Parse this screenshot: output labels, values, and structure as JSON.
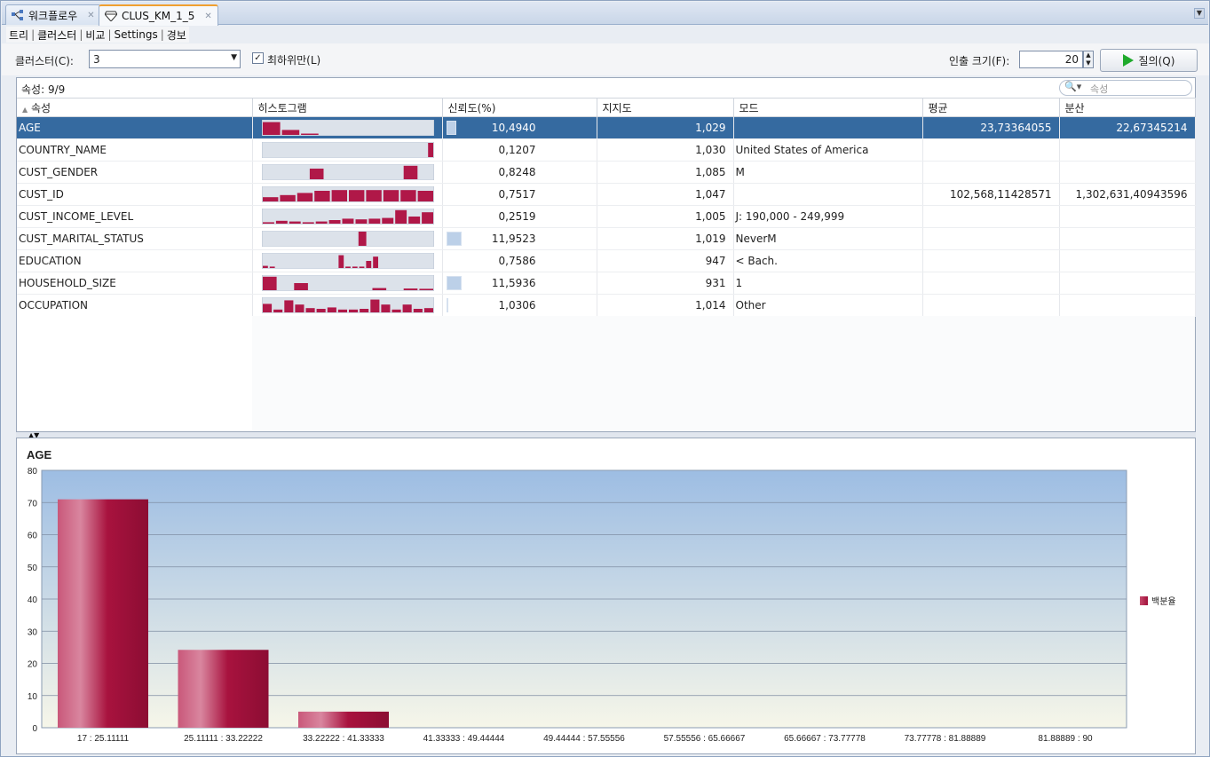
{
  "editor_tabs": [
    {
      "label": "워크플로우",
      "icon": "workflow-icon",
      "active": false
    },
    {
      "label": "CLUS_KM_1_5",
      "icon": "diamond-icon",
      "active": true
    }
  ],
  "sub_tabs": [
    {
      "label": "트리"
    },
    {
      "label": "클러스터",
      "selected": true
    },
    {
      "label": "비교"
    },
    {
      "label": "Settings"
    },
    {
      "label": "경보"
    }
  ],
  "toolbar": {
    "cluster_label": "클러스터(C):",
    "cluster_value": "3",
    "leaf_only_label": "최하위만(L)",
    "leaf_only_checked": true,
    "fetch_label": "인출 크기(F):",
    "fetch_value": "20",
    "query_label": "질의(Q)"
  },
  "table": {
    "attr_count": "속성: 9/9",
    "search_placeholder": "속성",
    "columns": [
      "속성",
      "히스토그램",
      "신뢰도(%)",
      "지지도",
      "모드",
      "평균",
      "분산"
    ],
    "rows": [
      {
        "name": "AGE",
        "hist": [
          0.9,
          0.35,
          0.07,
          0,
          0,
          0,
          0,
          0,
          0
        ],
        "confidence": "10,4940",
        "conf_frac": 0.09,
        "support": "1,029",
        "mode": "",
        "mean": "23,73364055",
        "variance": "22,67345214",
        "selected": true
      },
      {
        "name": "COUNTRY_NAME",
        "hist": [
          0,
          0,
          0,
          0,
          0,
          0,
          0,
          0,
          0,
          0,
          0,
          0,
          0,
          0,
          0,
          0,
          0,
          0,
          0,
          0,
          0,
          0,
          0,
          0,
          1
        ],
        "confidence": "0,1207",
        "conf_frac": 0,
        "support": "1,030",
        "mode": "United States of America",
        "mean": "",
        "variance": ""
      },
      {
        "name": "CUST_GENDER",
        "hist": [
          0,
          0,
          0,
          0.75,
          0,
          0,
          0,
          0,
          0,
          0.95,
          0
        ],
        "confidence": "0,8248",
        "conf_frac": 0,
        "support": "1,085",
        "mode": "M",
        "mean": "",
        "variance": ""
      },
      {
        "name": "CUST_ID",
        "hist": [
          0.3,
          0.45,
          0.6,
          0.75,
          0.8,
          0.8,
          0.8,
          0.8,
          0.8,
          0.75
        ],
        "confidence": "0,7517",
        "conf_frac": 0,
        "support": "1,047",
        "mode": "",
        "mean": "102,568,11428571",
        "variance": "1,302,631,40943596"
      },
      {
        "name": "CUST_INCOME_LEVEL",
        "hist": [
          0.1,
          0.2,
          0.15,
          0.1,
          0.15,
          0.25,
          0.35,
          0.3,
          0.35,
          0.4,
          0.95,
          0.5,
          0.8
        ],
        "confidence": "0,2519",
        "conf_frac": 0,
        "support": "1,005",
        "mode": "J: 190,000 - 249,999",
        "mean": "",
        "variance": ""
      },
      {
        "name": "CUST_MARITAL_STATUS",
        "hist": [
          0,
          0,
          0,
          0,
          0,
          0,
          0,
          0,
          0,
          0,
          1,
          0,
          0,
          0,
          0,
          0,
          0,
          0
        ],
        "confidence": "11,9523",
        "conf_frac": 0.14,
        "support": "1,019",
        "mode": "NeverM",
        "mean": "",
        "variance": ""
      },
      {
        "name": "EDUCATION",
        "hist": [
          0.15,
          0.1,
          0,
          0,
          0,
          0,
          0,
          0,
          0,
          0,
          0,
          0.9,
          0.1,
          0.1,
          0.1,
          0.5,
          0.8,
          0,
          0,
          0,
          0,
          0,
          0,
          0,
          0
        ],
        "confidence": "0,7586",
        "conf_frac": 0,
        "support": "947",
        "mode": "< Bach.",
        "mean": "",
        "variance": ""
      },
      {
        "name": "HOUSEHOLD_SIZE",
        "hist": [
          0.95,
          0,
          0.5,
          0,
          0,
          0,
          0,
          0.15,
          0,
          0.12,
          0.1
        ],
        "confidence": "11,5936",
        "conf_frac": 0.14,
        "support": "931",
        "mode": "1",
        "mean": "",
        "variance": ""
      },
      {
        "name": "OCCUPATION",
        "hist": [
          0.6,
          0.2,
          0.85,
          0.55,
          0.3,
          0.25,
          0.35,
          0.2,
          0.2,
          0.25,
          0.9,
          0.55,
          0.2,
          0.55,
          0.25,
          0.3
        ],
        "confidence": "1,0306",
        "conf_frac": 0.01,
        "support": "1,014",
        "mode": "Other",
        "mean": "",
        "variance": ""
      }
    ]
  },
  "chart_data": {
    "type": "bar",
    "title": "AGE",
    "categories": [
      "17 : 25.11111",
      "25.11111 : 33.22222",
      "33.22222 : 41.33333",
      "41.33333 : 49.44444",
      "49.44444 : 57.55556",
      "57.55556 : 65.66667",
      "65.66667 : 73.77778",
      "73.77778 : 81.88889",
      "81.88889 : 90"
    ],
    "series": [
      {
        "name": "백분율",
        "values": [
          71,
          24.2,
          5,
          0,
          0,
          0,
          0,
          0,
          0
        ]
      }
    ],
    "ylim": [
      0,
      80
    ],
    "yticks": [
      0,
      10,
      20,
      30,
      40,
      50,
      60,
      70,
      80
    ],
    "grid": true,
    "legend": "right",
    "bar_color": "#a8123e",
    "background_top": "#9dbde3",
    "background_bottom": "#f6f6e9"
  }
}
